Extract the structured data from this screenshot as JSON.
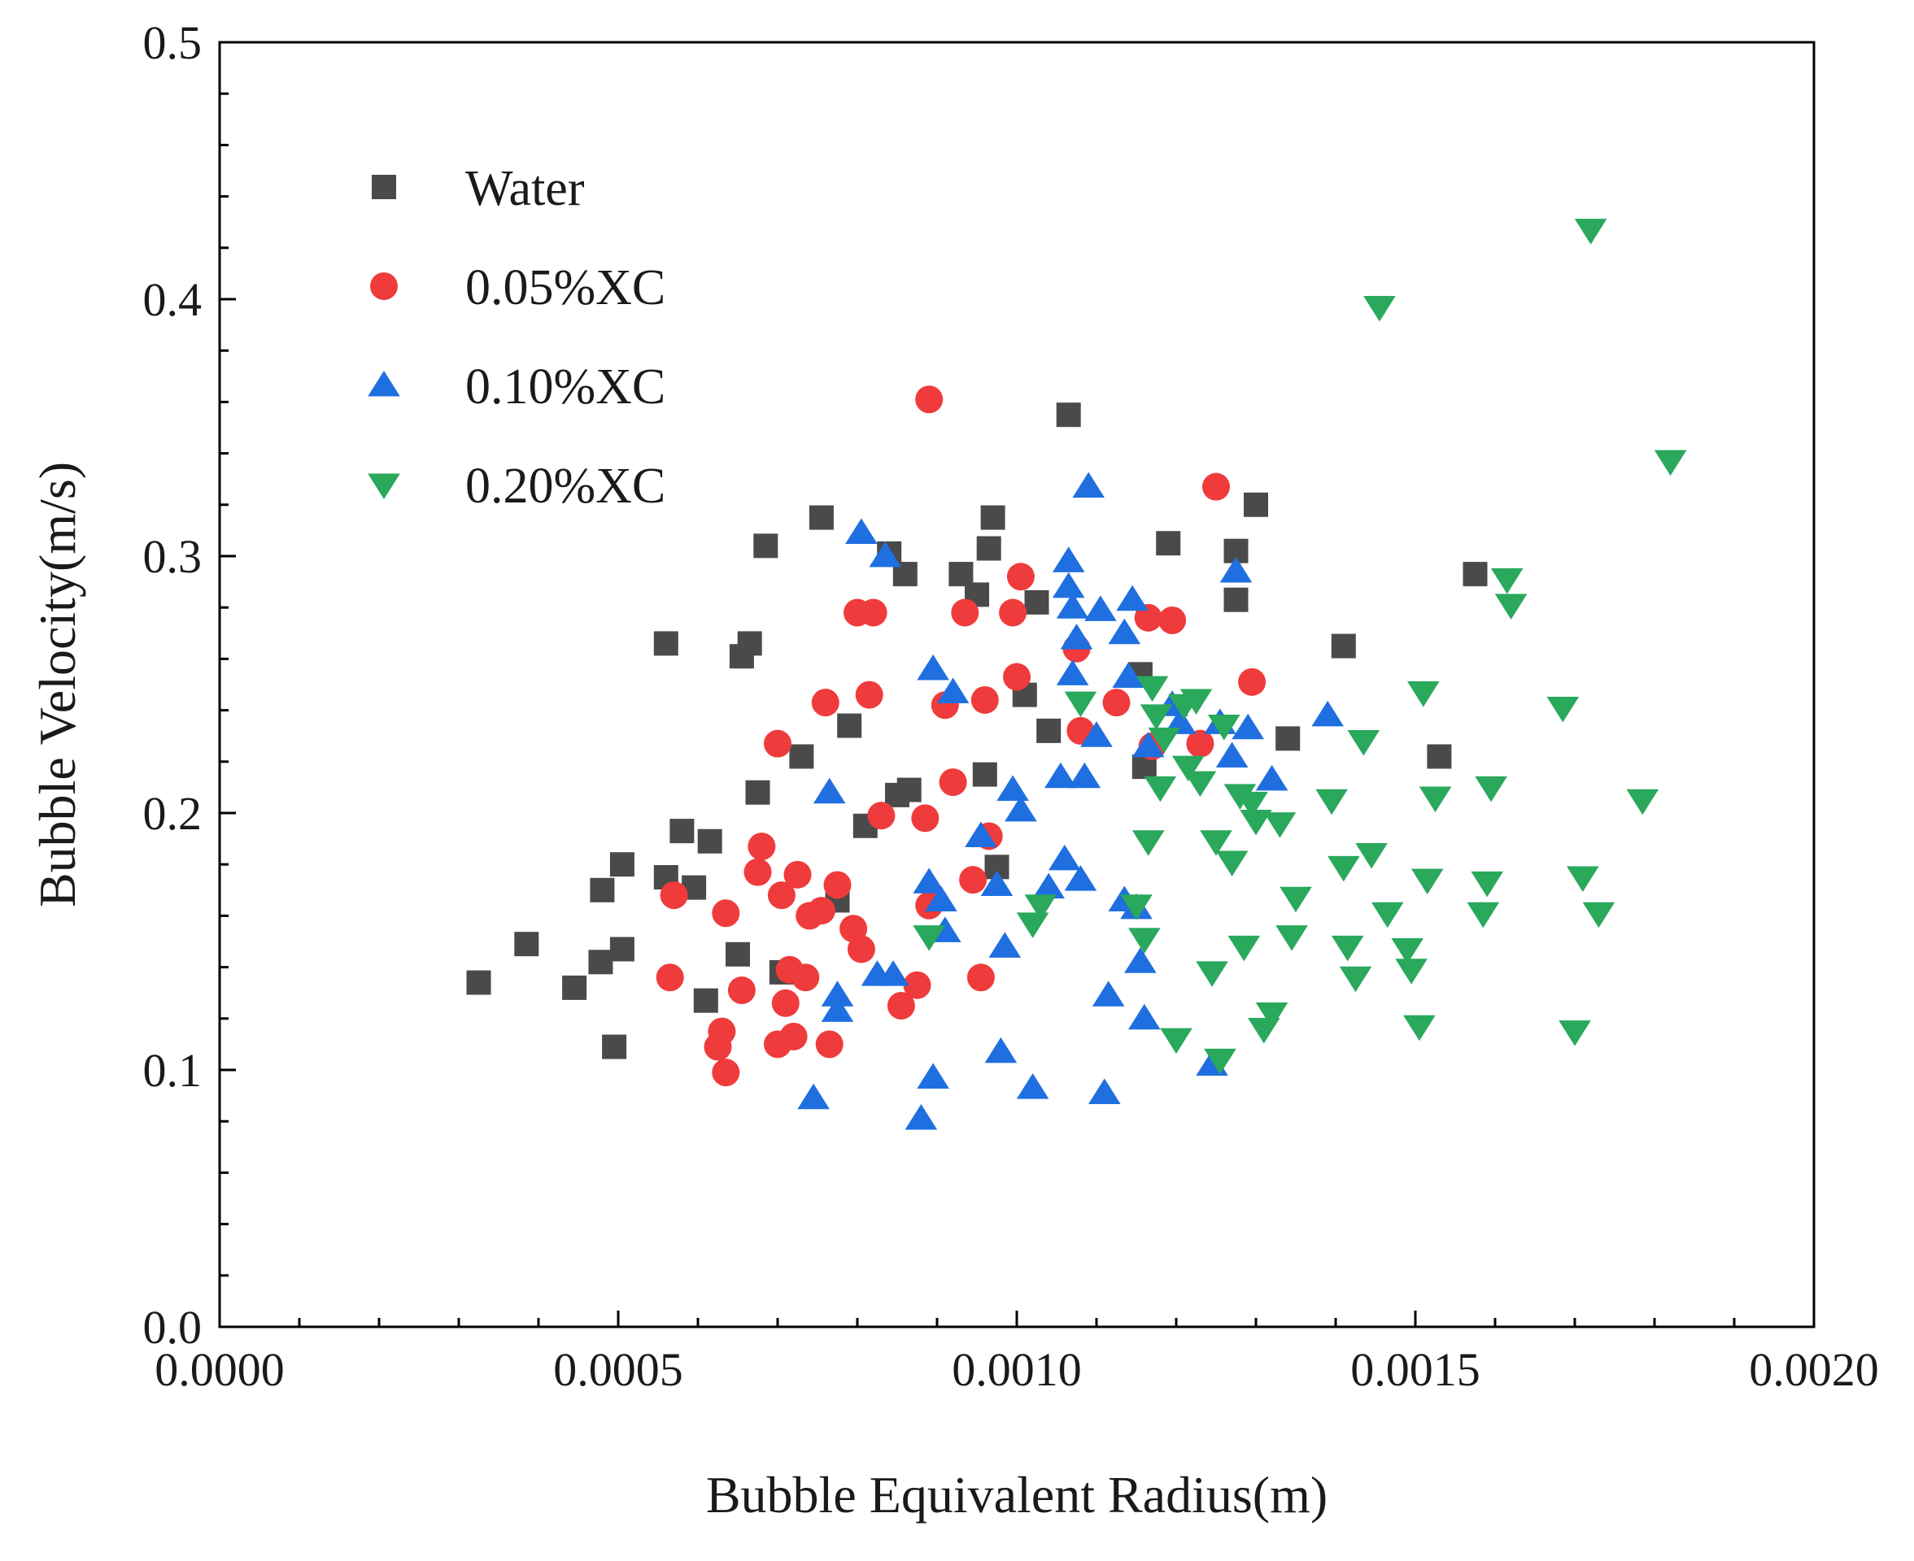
{
  "chart_data": {
    "type": "scatter",
    "title": "",
    "xlabel": "Bubble Equivalent Radius(m)",
    "ylabel": "Bubble Velocity(m/s)",
    "xlim": [
      0,
      0.002
    ],
    "ylim": [
      0,
      0.5
    ],
    "xticks": [
      0,
      0.0005,
      0.001,
      0.0015,
      0.002
    ],
    "xtick_labels": [
      "0.0000",
      "0.0005",
      "0.0010",
      "0.0015",
      "0.0020"
    ],
    "yticks": [
      0,
      0.1,
      0.2,
      0.3,
      0.4,
      0.5
    ],
    "ytick_labels": [
      "0.0",
      "0.1",
      "0.2",
      "0.3",
      "0.4",
      "0.5"
    ],
    "grid": false,
    "legend_position": "top-left",
    "series": [
      {
        "name": "Water",
        "marker": "square",
        "color": "#4a4a4a",
        "points": [
          [
            0.000325,
            0.134
          ],
          [
            0.000385,
            0.149
          ],
          [
            0.000445,
            0.132
          ],
          [
            0.000478,
            0.142
          ],
          [
            0.00048,
            0.17
          ],
          [
            0.000495,
            0.109
          ],
          [
            0.000505,
            0.18
          ],
          [
            0.000505,
            0.147
          ],
          [
            0.00056,
            0.175
          ],
          [
            0.00056,
            0.266
          ],
          [
            0.00058,
            0.193
          ],
          [
            0.000595,
            0.171
          ],
          [
            0.00061,
            0.127
          ],
          [
            0.000615,
            0.189
          ],
          [
            0.00065,
            0.145
          ],
          [
            0.000655,
            0.261
          ],
          [
            0.000665,
            0.266
          ],
          [
            0.000675,
            0.208
          ],
          [
            0.000685,
            0.304
          ],
          [
            0.000705,
            0.138
          ],
          [
            0.00073,
            0.222
          ],
          [
            0.000755,
            0.315
          ],
          [
            0.000775,
            0.166
          ],
          [
            0.00079,
            0.234
          ],
          [
            0.00081,
            0.195
          ],
          [
            0.00084,
            0.301
          ],
          [
            0.00085,
            0.207
          ],
          [
            0.00086,
            0.293
          ],
          [
            0.000865,
            0.209
          ],
          [
            0.00093,
            0.293
          ],
          [
            0.00095,
            0.285
          ],
          [
            0.00096,
            0.215
          ],
          [
            0.000965,
            0.303
          ],
          [
            0.00097,
            0.315
          ],
          [
            0.000975,
            0.179
          ],
          [
            0.00101,
            0.246
          ],
          [
            0.001025,
            0.282
          ],
          [
            0.00104,
            0.232
          ],
          [
            0.001065,
            0.355
          ],
          [
            0.001155,
            0.254
          ],
          [
            0.00116,
            0.218
          ],
          [
            0.00119,
            0.305
          ],
          [
            0.001275,
            0.283
          ],
          [
            0.001275,
            0.302
          ],
          [
            0.0013,
            0.32
          ],
          [
            0.00134,
            0.229
          ],
          [
            0.00141,
            0.265
          ],
          [
            0.00153,
            0.222
          ],
          [
            0.001575,
            0.293
          ]
        ]
      },
      {
        "name": "0.05%XC",
        "marker": "circle",
        "color": "#ef3b3b",
        "points": [
          [
            0.000565,
            0.136
          ],
          [
            0.00057,
            0.168
          ],
          [
            0.000625,
            0.109
          ],
          [
            0.00063,
            0.115
          ],
          [
            0.000635,
            0.099
          ],
          [
            0.000635,
            0.161
          ],
          [
            0.000655,
            0.131
          ],
          [
            0.000675,
            0.177
          ],
          [
            0.00068,
            0.187
          ],
          [
            0.0007,
            0.11
          ],
          [
            0.0007,
            0.227
          ],
          [
            0.000705,
            0.168
          ],
          [
            0.00071,
            0.126
          ],
          [
            0.000715,
            0.139
          ],
          [
            0.00072,
            0.113
          ],
          [
            0.000725,
            0.176
          ],
          [
            0.000735,
            0.136
          ],
          [
            0.00074,
            0.16
          ],
          [
            0.000755,
            0.162
          ],
          [
            0.00076,
            0.243
          ],
          [
            0.000765,
            0.11
          ],
          [
            0.000775,
            0.172
          ],
          [
            0.000795,
            0.155
          ],
          [
            0.0008,
            0.278
          ],
          [
            0.000805,
            0.147
          ],
          [
            0.000815,
            0.246
          ],
          [
            0.00082,
            0.278
          ],
          [
            0.00083,
            0.199
          ],
          [
            0.000855,
            0.125
          ],
          [
            0.000875,
            0.133
          ],
          [
            0.000885,
            0.198
          ],
          [
            0.00089,
            0.164
          ],
          [
            0.00089,
            0.361
          ],
          [
            0.00091,
            0.242
          ],
          [
            0.00092,
            0.212
          ],
          [
            0.000935,
            0.278
          ],
          [
            0.000945,
            0.174
          ],
          [
            0.000955,
            0.136
          ],
          [
            0.00096,
            0.244
          ],
          [
            0.000965,
            0.191
          ],
          [
            0.000995,
            0.278
          ],
          [
            0.001,
            0.253
          ],
          [
            0.001005,
            0.292
          ],
          [
            0.001075,
            0.264
          ],
          [
            0.00108,
            0.232
          ],
          [
            0.001125,
            0.243
          ],
          [
            0.001165,
            0.276
          ],
          [
            0.00117,
            0.226
          ],
          [
            0.001195,
            0.275
          ],
          [
            0.00123,
            0.227
          ],
          [
            0.00125,
            0.327
          ],
          [
            0.001295,
            0.251
          ]
        ]
      },
      {
        "name": "0.10%XC",
        "marker": "triangle-up",
        "color": "#1f6fe0",
        "points": [
          [
            0.000745,
            0.089
          ],
          [
            0.000765,
            0.208
          ],
          [
            0.000775,
            0.123
          ],
          [
            0.000775,
            0.129
          ],
          [
            0.000805,
            0.309
          ],
          [
            0.000825,
            0.137
          ],
          [
            0.000835,
            0.3
          ],
          [
            0.000845,
            0.137
          ],
          [
            0.00088,
            0.081
          ],
          [
            0.00089,
            0.173
          ],
          [
            0.000895,
            0.256
          ],
          [
            0.000895,
            0.097
          ],
          [
            0.000905,
            0.166
          ],
          [
            0.00091,
            0.154
          ],
          [
            0.00092,
            0.247
          ],
          [
            0.000955,
            0.191
          ],
          [
            0.000975,
            0.172
          ],
          [
            0.00098,
            0.107
          ],
          [
            0.000985,
            0.148
          ],
          [
            0.000995,
            0.209
          ],
          [
            0.001005,
            0.201
          ],
          [
            0.00102,
            0.093
          ],
          [
            0.00104,
            0.171
          ],
          [
            0.001055,
            0.214
          ],
          [
            0.00106,
            0.182
          ],
          [
            0.001065,
            0.298
          ],
          [
            0.001065,
            0.288
          ],
          [
            0.00107,
            0.28
          ],
          [
            0.00107,
            0.254
          ],
          [
            0.001075,
            0.268
          ],
          [
            0.00108,
            0.174
          ],
          [
            0.001085,
            0.214
          ],
          [
            0.00109,
            0.327
          ],
          [
            0.0011,
            0.23
          ],
          [
            0.001105,
            0.279
          ],
          [
            0.00111,
            0.091
          ],
          [
            0.001115,
            0.129
          ],
          [
            0.001135,
            0.27
          ],
          [
            0.001135,
            0.166
          ],
          [
            0.00114,
            0.253
          ],
          [
            0.001145,
            0.283
          ],
          [
            0.00115,
            0.163
          ],
          [
            0.001155,
            0.142
          ],
          [
            0.00116,
            0.12
          ],
          [
            0.001165,
            0.226
          ],
          [
            0.001195,
            0.242
          ],
          [
            0.001205,
            0.235
          ],
          [
            0.001245,
            0.102
          ],
          [
            0.001255,
            0.235
          ],
          [
            0.00127,
            0.222
          ],
          [
            0.001275,
            0.294
          ],
          [
            0.00129,
            0.233
          ],
          [
            0.00132,
            0.213
          ],
          [
            0.00139,
            0.238
          ]
        ]
      },
      {
        "name": "0.20%XC",
        "marker": "triangle-down",
        "color": "#2aa85c",
        "points": [
          [
            0.00089,
            0.152
          ],
          [
            0.00102,
            0.157
          ],
          [
            0.00103,
            0.164
          ],
          [
            0.00108,
            0.243
          ],
          [
            0.00115,
            0.164
          ],
          [
            0.00116,
            0.151
          ],
          [
            0.001165,
            0.189
          ],
          [
            0.00117,
            0.249
          ],
          [
            0.001175,
            0.238
          ],
          [
            0.00118,
            0.21
          ],
          [
            0.001185,
            0.229
          ],
          [
            0.0012,
            0.112
          ],
          [
            0.00121,
            0.242
          ],
          [
            0.001215,
            0.218
          ],
          [
            0.001225,
            0.244
          ],
          [
            0.00123,
            0.212
          ],
          [
            0.001245,
            0.138
          ],
          [
            0.00125,
            0.189
          ],
          [
            0.001255,
            0.104
          ],
          [
            0.00126,
            0.234
          ],
          [
            0.00127,
            0.181
          ],
          [
            0.00128,
            0.207
          ],
          [
            0.001285,
            0.148
          ],
          [
            0.001295,
            0.204
          ],
          [
            0.0013,
            0.197
          ],
          [
            0.00131,
            0.116
          ],
          [
            0.00132,
            0.122
          ],
          [
            0.00133,
            0.196
          ],
          [
            0.001345,
            0.152
          ],
          [
            0.00135,
            0.167
          ],
          [
            0.001395,
            0.205
          ],
          [
            0.00141,
            0.179
          ],
          [
            0.001415,
            0.148
          ],
          [
            0.001425,
            0.136
          ],
          [
            0.001435,
            0.228
          ],
          [
            0.001445,
            0.184
          ],
          [
            0.001455,
            0.397
          ],
          [
            0.001465,
            0.161
          ],
          [
            0.00149,
            0.147
          ],
          [
            0.001495,
            0.139
          ],
          [
            0.001505,
            0.117
          ],
          [
            0.00151,
            0.247
          ],
          [
            0.001515,
            0.174
          ],
          [
            0.001525,
            0.206
          ],
          [
            0.001585,
            0.161
          ],
          [
            0.00159,
            0.173
          ],
          [
            0.001595,
            0.21
          ],
          [
            0.001615,
            0.291
          ],
          [
            0.00162,
            0.281
          ],
          [
            0.001685,
            0.241
          ],
          [
            0.0017,
            0.115
          ],
          [
            0.00171,
            0.175
          ],
          [
            0.00172,
            0.427
          ],
          [
            0.00173,
            0.161
          ],
          [
            0.001785,
            0.205
          ],
          [
            0.00182,
            0.337
          ]
        ]
      }
    ]
  }
}
